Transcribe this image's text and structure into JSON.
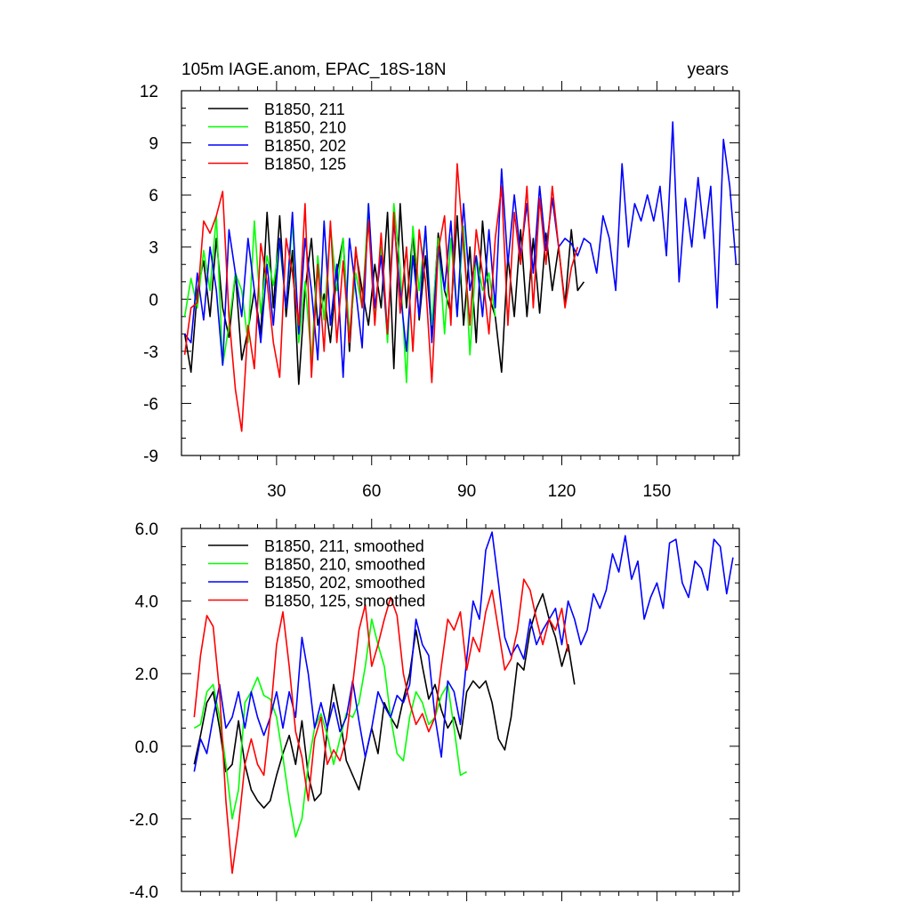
{
  "figure": {
    "title_left": "105m IAGE.anom, EPAC_18S-18N",
    "title_right": "years"
  },
  "chart_data": [
    {
      "type": "line",
      "title": "105m IAGE.anom, EPAC_18S-18N",
      "subtitle": "years",
      "xlabel": "",
      "ylabel": "",
      "xlim": [
        0,
        176
      ],
      "ylim": [
        -9,
        12
      ],
      "x_ticks": [
        30,
        60,
        90,
        120,
        150
      ],
      "x_tick_labels": [
        "30",
        "60",
        "90",
        "120",
        "150"
      ],
      "y_ticks": [
        -9,
        -6,
        -3,
        0,
        3,
        6,
        9,
        12
      ],
      "y_tick_labels": [
        "-9",
        "-6",
        "-3",
        "0",
        "3",
        "6",
        "9",
        "12"
      ],
      "grid": false,
      "legend_position": "top-left",
      "series": [
        {
          "name": "B1850, 211",
          "color": "#000000",
          "x": [
            1,
            3,
            5,
            7,
            9,
            11,
            13,
            15,
            17,
            19,
            21,
            23,
            25,
            27,
            29,
            31,
            33,
            35,
            37,
            39,
            41,
            43,
            45,
            47,
            49,
            51,
            53,
            55,
            57,
            59,
            61,
            63,
            65,
            67,
            69,
            71,
            73,
            75,
            77,
            79,
            81,
            83,
            85,
            87,
            89,
            91,
            93,
            95,
            97,
            99,
            101,
            103,
            105,
            107,
            109,
            111,
            113,
            115,
            117,
            119,
            121,
            123,
            125,
            127
          ],
          "values": [
            -2,
            -4.2,
            0.5,
            2.2,
            -1,
            3.5,
            -0.5,
            -2.2,
            1.5,
            -3.5,
            -1.8,
            0.5,
            -2,
            5,
            -0.5,
            4.8,
            -1,
            2.8,
            -4.9,
            0.5,
            3.5,
            -1.5,
            0.3,
            -2.5,
            1.5,
            3.5,
            -3,
            2.8,
            0.5,
            -1.5,
            2,
            -0.5,
            5,
            -4,
            5.5,
            -0.5,
            3.8,
            -1.2,
            2.5,
            -2,
            3.8,
            0.5,
            -0.8,
            4.8,
            -1.5,
            3,
            -2.5,
            4.5,
            0.2,
            -1,
            -4.2,
            2.5,
            -1,
            4,
            -1,
            3.5,
            -0.8,
            3.8,
            0.5,
            3,
            -0.3,
            4,
            0.5,
            1
          ]
        },
        {
          "name": "B1850, 210",
          "color": "#00ff00",
          "x": [
            1,
            3,
            5,
            7,
            9,
            11,
            13,
            15,
            17,
            19,
            21,
            23,
            25,
            27,
            29,
            31,
            33,
            35,
            37,
            39,
            41,
            43,
            45,
            47,
            49,
            51,
            53,
            55,
            57,
            59,
            61,
            63,
            65,
            67,
            69,
            71,
            73,
            75,
            77,
            79,
            81,
            83,
            85,
            87,
            89,
            91,
            93,
            95,
            97,
            99
          ],
          "values": [
            -1,
            1.2,
            -0.5,
            2.8,
            0.5,
            4.8,
            -3.8,
            -1.5,
            1.5,
            0.5,
            -2.5,
            4.5,
            -0.8,
            2.5,
            0.8,
            3.3,
            -0.5,
            4.5,
            -2.5,
            1,
            -3.5,
            2.5,
            -1.2,
            4.2,
            0.5,
            3.5,
            -2,
            1.5,
            -0.5,
            5.5,
            -1,
            3,
            -2.5,
            5.5,
            1.8,
            -4.8,
            4.2,
            0.5,
            4,
            -1.5,
            3.5,
            -2,
            3.5,
            -1,
            4.2,
            -3.2,
            2.5,
            0.5,
            1.5,
            -1
          ]
        },
        {
          "name": "B1850, 202",
          "color": "#0000ff",
          "x": [
            1,
            3,
            5,
            7,
            9,
            11,
            13,
            15,
            17,
            19,
            21,
            23,
            25,
            27,
            29,
            31,
            33,
            35,
            37,
            39,
            41,
            43,
            45,
            47,
            49,
            51,
            53,
            55,
            57,
            59,
            61,
            63,
            65,
            67,
            69,
            71,
            73,
            75,
            77,
            79,
            81,
            83,
            85,
            87,
            89,
            91,
            93,
            95,
            97,
            99,
            101,
            103,
            105,
            107,
            109,
            111,
            113,
            115,
            117,
            119,
            121,
            123,
            125,
            127,
            129,
            131,
            133,
            135,
            137,
            139,
            141,
            143,
            145,
            147,
            149,
            151,
            153,
            155,
            157,
            159,
            161,
            163,
            165,
            167,
            169,
            171,
            173,
            175
          ],
          "values": [
            -2,
            -2.5,
            1.5,
            -1.2,
            3,
            0.5,
            -3.8,
            4,
            1.5,
            -1,
            3.5,
            0.5,
            -2.5,
            2,
            -1.5,
            3.5,
            -0.5,
            5,
            -2,
            3.5,
            0.5,
            -3.5,
            4.5,
            -1.5,
            2,
            -4.5,
            3.5,
            0.5,
            -2.8,
            5.5,
            -0.5,
            2.5,
            -2,
            4.5,
            0.5,
            -3,
            2.5,
            -1,
            4.2,
            -2.5,
            3,
            0.5,
            4.5,
            -1,
            5.5,
            0.5,
            2.5,
            -1,
            4,
            -0.5,
            7.5,
            2,
            6,
            2.5,
            5.5,
            1.5,
            6.5,
            2.8,
            5.8,
            3,
            3.5,
            3.2,
            2.5,
            3.5,
            3.2,
            1.5,
            4.8,
            3.5,
            0.5,
            7.8,
            3,
            5.5,
            4.5,
            6,
            4.5,
            6.5,
            2.5,
            10.2,
            1,
            5.8,
            3,
            7,
            3.5,
            6.5,
            -0.5,
            9.2,
            6.5,
            2
          ]
        },
        {
          "name": "B1850, 125",
          "color": "#ff0000",
          "x": [
            1,
            3,
            5,
            7,
            9,
            11,
            13,
            15,
            17,
            19,
            21,
            23,
            25,
            27,
            29,
            31,
            33,
            35,
            37,
            39,
            41,
            43,
            45,
            47,
            49,
            51,
            53,
            55,
            57,
            59,
            61,
            63,
            65,
            67,
            69,
            71,
            73,
            75,
            77,
            79,
            81,
            83,
            85,
            87,
            89,
            91,
            93,
            95,
            97,
            99,
            101,
            103,
            105,
            107,
            109,
            111,
            113,
            115,
            117,
            119,
            121,
            123,
            125
          ],
          "values": [
            -3.2,
            -0.5,
            -0.2,
            4.5,
            3.8,
            4.8,
            6.2,
            -1,
            -5.2,
            -7.6,
            -1.5,
            -4,
            3.2,
            1,
            -2.5,
            -4.5,
            3.5,
            1.5,
            -1.5,
            5.5,
            -4.5,
            2,
            -3,
            4.5,
            -2.5,
            2.2,
            -2.5,
            3,
            -0.5,
            4.5,
            -1.5,
            3.8,
            -2,
            5,
            -0.8,
            3,
            -3,
            4,
            1,
            -4.8,
            2.8,
            4.8,
            -1.5,
            7.8,
            3,
            -1.5,
            4,
            1.5,
            -2,
            3.5,
            6.5,
            -1.5,
            5,
            2,
            6.5,
            -0.5,
            5.8,
            2,
            6.5,
            3,
            -0.5,
            1.8,
            3
          ]
        }
      ]
    },
    {
      "type": "line",
      "title": "",
      "xlabel": "",
      "ylabel": "",
      "xlim": [
        0,
        176
      ],
      "ylim": [
        -4,
        6
      ],
      "x_ticks": [
        30,
        60,
        90,
        120,
        150
      ],
      "x_tick_labels": [
        "",
        "",
        "",
        "",
        ""
      ],
      "y_ticks": [
        -4,
        -2,
        0,
        2,
        4,
        6
      ],
      "y_tick_labels": [
        "-4.0",
        "-2.0",
        "0.0",
        "2.0",
        "4.0",
        "6.0"
      ],
      "grid": false,
      "legend_position": "top-left",
      "series": [
        {
          "name": "B1850, 211, smoothed",
          "color": "#000000",
          "x": [
            4,
            6,
            8,
            10,
            12,
            14,
            16,
            18,
            20,
            22,
            24,
            26,
            28,
            30,
            32,
            34,
            36,
            38,
            40,
            42,
            44,
            46,
            48,
            50,
            52,
            54,
            56,
            58,
            60,
            62,
            64,
            66,
            68,
            70,
            72,
            74,
            76,
            78,
            80,
            82,
            84,
            86,
            88,
            90,
            92,
            94,
            96,
            98,
            100,
            102,
            104,
            106,
            108,
            110,
            112,
            114,
            116,
            118,
            120,
            122,
            124
          ],
          "values": [
            -0.5,
            0.3,
            1.2,
            1.5,
            0.5,
            -0.7,
            -0.5,
            0.7,
            -0.5,
            -1.2,
            -1.5,
            -1.7,
            -1.5,
            -0.8,
            -0.2,
            0.3,
            -0.5,
            0.7,
            -0.8,
            -1.5,
            -1.3,
            0.5,
            1.7,
            0.8,
            -0.4,
            -0.8,
            -1.2,
            -0.3,
            0.5,
            -0.2,
            1.2,
            0.8,
            0.5,
            1.3,
            2,
            3.2,
            2.2,
            1.3,
            1.7,
            1,
            0.5,
            0.8,
            0.2,
            1.5,
            1.8,
            1.6,
            1.8,
            1.2,
            0.2,
            -0.1,
            0.8,
            2.3,
            2.1,
            3.2,
            3.8,
            4.2,
            3.5,
            3,
            2.2,
            2.8,
            1.7
          ]
        },
        {
          "name": "B1850, 210, smoothed",
          "color": "#00ff00",
          "x": [
            4,
            6,
            8,
            10,
            12,
            14,
            16,
            18,
            20,
            22,
            24,
            26,
            28,
            30,
            32,
            34,
            36,
            38,
            40,
            42,
            44,
            46,
            48,
            50,
            52,
            54,
            56,
            58,
            60,
            62,
            64,
            66,
            68,
            70,
            72,
            74,
            76,
            78,
            80,
            82,
            84,
            86,
            88,
            90
          ],
          "values": [
            0.5,
            0.6,
            1.5,
            1.7,
            0.8,
            -0.5,
            -2,
            -1.2,
            1.2,
            1.5,
            1.9,
            1.4,
            1.3,
            0.8,
            -0.3,
            -1.5,
            -2.5,
            -2,
            -0.5,
            0.5,
            0.9,
            0.3,
            -0.5,
            0.2,
            0.9,
            0.8,
            1.2,
            2.2,
            3.5,
            2.8,
            2.2,
            0.8,
            -0.2,
            -0.4,
            0.8,
            1.5,
            1.2,
            0.6,
            0.8,
            1.4,
            1.7,
            0.5,
            -0.8,
            -0.7
          ]
        },
        {
          "name": "B1850, 202, smoothed",
          "color": "#0000ff",
          "x": [
            4,
            6,
            8,
            10,
            12,
            14,
            16,
            18,
            20,
            22,
            24,
            26,
            28,
            30,
            32,
            34,
            36,
            38,
            40,
            42,
            44,
            46,
            48,
            50,
            52,
            54,
            56,
            58,
            60,
            62,
            64,
            66,
            68,
            70,
            72,
            74,
            76,
            78,
            80,
            82,
            84,
            86,
            88,
            90,
            92,
            94,
            96,
            98,
            100,
            102,
            104,
            106,
            108,
            110,
            112,
            114,
            116,
            118,
            120,
            122,
            124,
            126,
            128,
            130,
            132,
            134,
            136,
            138,
            140,
            142,
            144,
            146,
            148,
            150,
            152,
            154,
            156,
            158,
            160,
            162,
            164,
            166,
            168,
            170,
            172,
            174
          ],
          "values": [
            -0.7,
            0.2,
            -0.2,
            0.8,
            1.7,
            0.5,
            0.8,
            1.5,
            0.5,
            1.5,
            0.8,
            0.3,
            0.8,
            1.5,
            0.5,
            1.5,
            0.8,
            3,
            2,
            0.5,
            1.2,
            0.5,
            1.2,
            0.4,
            0.8,
            1.8,
            0.7,
            -0.3,
            0.5,
            1.5,
            1.1,
            0.8,
            1.4,
            1.2,
            1.7,
            3.5,
            2.8,
            2.5,
            0.8,
            -0.3,
            1.8,
            1.5,
            0.6,
            2.4,
            4,
            3.5,
            5.4,
            5.9,
            4.5,
            3,
            2.5,
            2.8,
            2.4,
            3.5,
            2.8,
            3.2,
            3.5,
            3.8,
            2.8,
            4,
            3.5,
            2.8,
            3.2,
            4.2,
            3.8,
            4.3,
            5.3,
            4.8,
            5.8,
            4.6,
            5.1,
            3.5,
            4.1,
            4.5,
            3.8,
            5.6,
            5.7,
            4.5,
            4.1,
            5.1,
            4.9,
            4.3,
            5.7,
            5.5,
            4.2,
            5.2
          ]
        },
        {
          "name": "B1850, 125, smoothed",
          "color": "#ff0000",
          "x": [
            4,
            6,
            8,
            10,
            12,
            14,
            16,
            18,
            20,
            22,
            24,
            26,
            28,
            30,
            32,
            34,
            36,
            38,
            40,
            42,
            44,
            46,
            48,
            50,
            52,
            54,
            56,
            58,
            60,
            62,
            64,
            66,
            68,
            70,
            72,
            74,
            76,
            78,
            80,
            82,
            84,
            86,
            88,
            90,
            92,
            94,
            96,
            98,
            100,
            102,
            104,
            106,
            108,
            110,
            112,
            114,
            116,
            118,
            120,
            122
          ],
          "values": [
            0.8,
            2.5,
            3.6,
            3.3,
            1.5,
            -1.5,
            -3.5,
            -2.2,
            -0.5,
            0.2,
            -0.5,
            -0.8,
            0.8,
            2.8,
            3.7,
            2.2,
            0.4,
            -0.3,
            -1.5,
            0.2,
            0.8,
            -0.5,
            -0.1,
            -0.4,
            0.2,
            1.7,
            3.2,
            3.9,
            2.2,
            2.8,
            3.5,
            4.1,
            3.6,
            2,
            1.2,
            0.6,
            0.9,
            0.4,
            0.8,
            2.2,
            3.5,
            3.2,
            3.7,
            2.1,
            3,
            2.6,
            3.7,
            4.3,
            3.2,
            2.1,
            2.4,
            3.2,
            4.6,
            4.3,
            3.5,
            2.8,
            3.5,
            3.2,
            3.8,
            2.6
          ]
        }
      ]
    }
  ]
}
